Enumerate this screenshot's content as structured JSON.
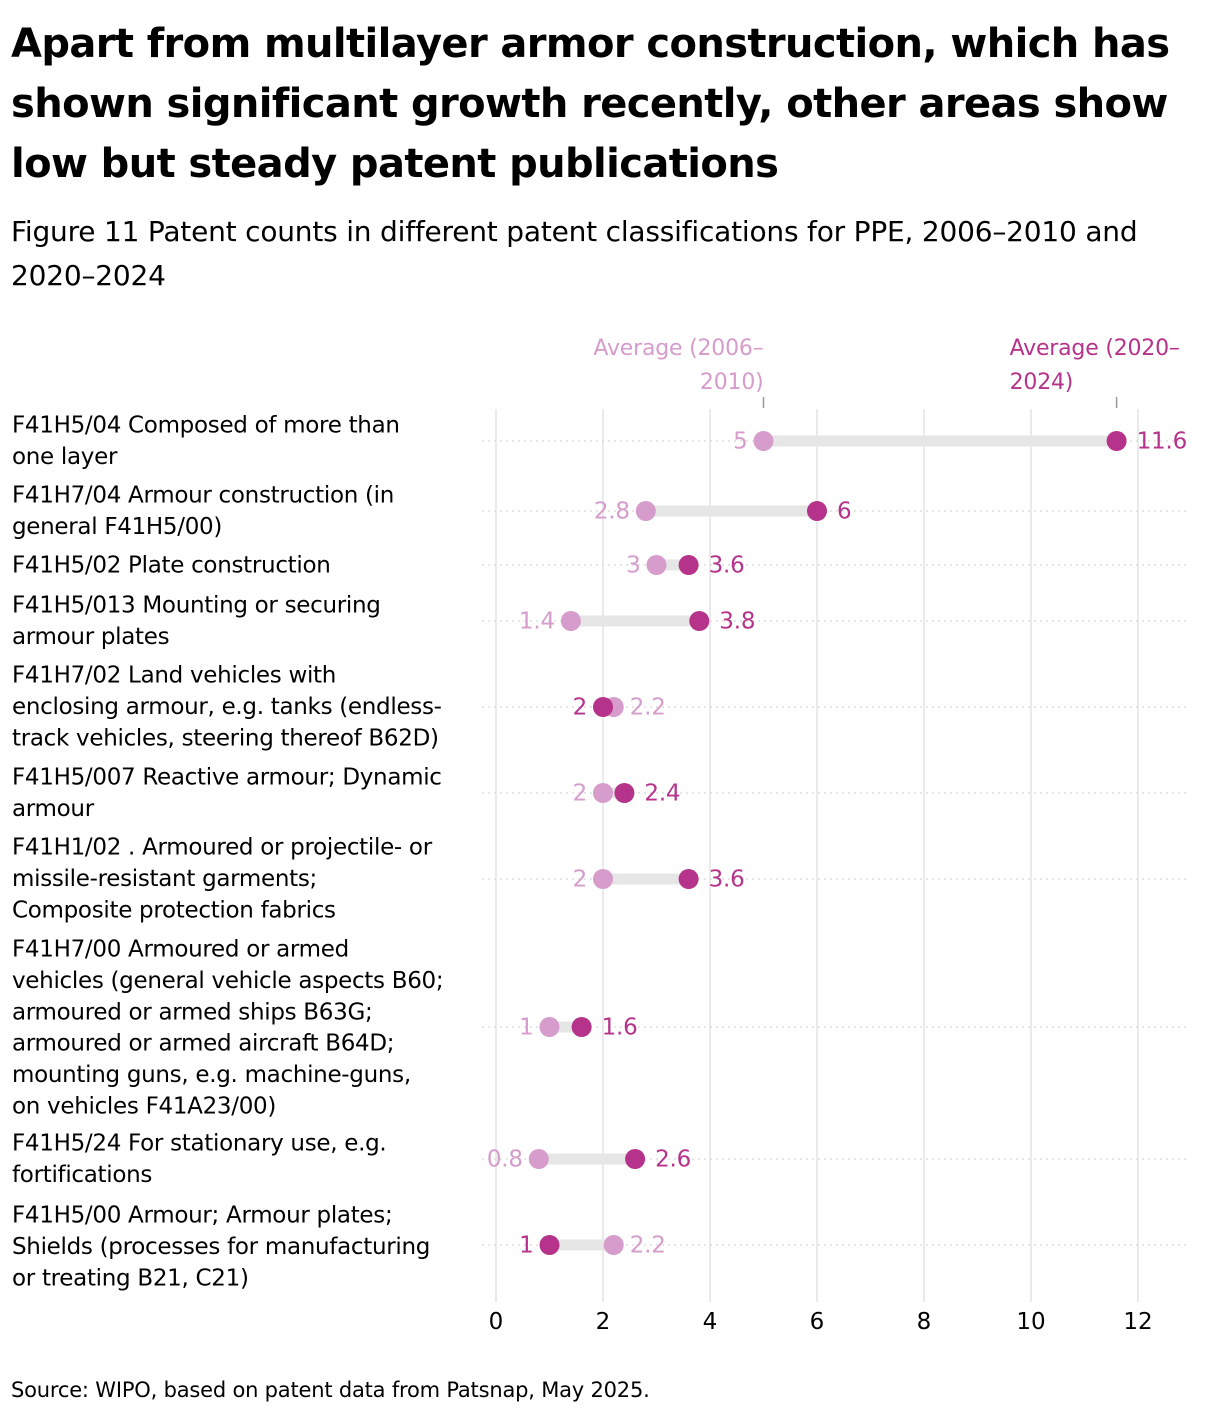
{
  "title": "Apart from multilayer armor construction, which has shown significant growth recently, other areas show low but steady patent publications",
  "subtitle": "Figure 11 Patent counts in different patent classifications for PPE, 2006–2010 and 2020–2024",
  "source": "Source: WIPO, based on patent data from Patsnap, May 2025.",
  "colors": {
    "early": "#d59ccc",
    "late": "#b5338a",
    "connector": "#e6e6e6",
    "grid": "#e3e3e3"
  },
  "chart_data": {
    "type": "dumbbell",
    "xlim": [
      0,
      12
    ],
    "x_ticks": [
      0,
      2,
      4,
      6,
      8,
      10,
      12
    ],
    "grid": true,
    "averages": [
      {
        "name": "Average (2006–2010)",
        "lines": [
          "Average (2006–",
          "2010)"
        ],
        "value": 5.0,
        "series": "early"
      },
      {
        "name": "Average (2020–2024)",
        "lines": [
          "Average (2020–",
          "2024)"
        ],
        "value": 11.6,
        "series": "late"
      }
    ],
    "categories": [
      {
        "label": "F41H5/04 Composed of more than one layer",
        "lines": [
          "F41H5/04 Composed of more than",
          "one layer"
        ],
        "early": 5,
        "late": 11.6,
        "early_label": "5",
        "late_label": "11.6"
      },
      {
        "label": "F41H7/04 Armour construction (in general F41H5/00)",
        "lines": [
          "F41H7/04 Armour construction (in",
          "general F41H5/00)"
        ],
        "early": 2.8,
        "late": 6,
        "early_label": "2.8",
        "late_label": "6"
      },
      {
        "label": "F41H5/02 Plate construction",
        "lines": [
          "F41H5/02 Plate construction"
        ],
        "early": 3,
        "late": 3.6,
        "early_label": "3",
        "late_label": "3.6"
      },
      {
        "label": "F41H5/013 Mounting or securing armour plates",
        "lines": [
          "F41H5/013 Mounting or securing",
          "armour plates"
        ],
        "early": 1.4,
        "late": 3.8,
        "early_label": "1.4",
        "late_label": "3.8"
      },
      {
        "label": "F41H7/02 Land vehicles with enclosing armour, e.g. tanks (endless-track vehicles, steering thereof B62D)",
        "lines": [
          "F41H7/02 Land vehicles with",
          "enclosing armour, e.g. tanks (endless-",
          "track vehicles, steering thereof B62D)"
        ],
        "early": 2.2,
        "late": 2,
        "early_label": "2.2",
        "late_label": "2"
      },
      {
        "label": "F41H5/007 Reactive armour; Dynamic armour",
        "lines": [
          "F41H5/007 Reactive armour; Dynamic",
          "armour"
        ],
        "early": 2,
        "late": 2.4,
        "early_label": "2",
        "late_label": "2.4"
      },
      {
        "label": "F41H1/02 . Armoured or projectile- or missile-resistant garments; Composite protection fabrics",
        "lines": [
          "F41H1/02 . Armoured or projectile- or",
          "missile-resistant garments;",
          "Composite protection fabrics"
        ],
        "early": 2,
        "late": 3.6,
        "early_label": "2",
        "late_label": "3.6"
      },
      {
        "label": "F41H7/00 Armoured or armed vehicles (general vehicle aspects B60; armoured or armed ships B63G; armoured or armed aircraft B64D; mounting guns, e.g. machine-guns, on vehicles F41A23/00)",
        "lines": [
          "F41H7/00 Armoured or armed",
          "vehicles (general vehicle aspects B60;",
          "armoured or armed ships B63G;",
          "armoured or armed aircraft B64D;",
          "mounting guns, e.g. machine-guns,",
          "on vehicles F41A23/00)"
        ],
        "early": 1,
        "late": 1.6,
        "early_label": "1",
        "late_label": "1.6"
      },
      {
        "label": "F41H5/24 For stationary use, e.g. fortifications",
        "lines": [
          "F41H5/24 For stationary use, e.g.",
          "fortifications"
        ],
        "early": 0.8,
        "late": 2.6,
        "early_label": "0.8",
        "late_label": "2.6"
      },
      {
        "label": "F41H5/00 Armour; Armour plates; Shields (processes for manufacturing or treating B21, C21)",
        "lines": [
          "F41H5/00 Armour; Armour plates;",
          "Shields (processes for manufacturing",
          "or treating B21, C21)"
        ],
        "early": 2.2,
        "late": 1,
        "early_label": "2.2",
        "late_label": "1"
      }
    ]
  }
}
